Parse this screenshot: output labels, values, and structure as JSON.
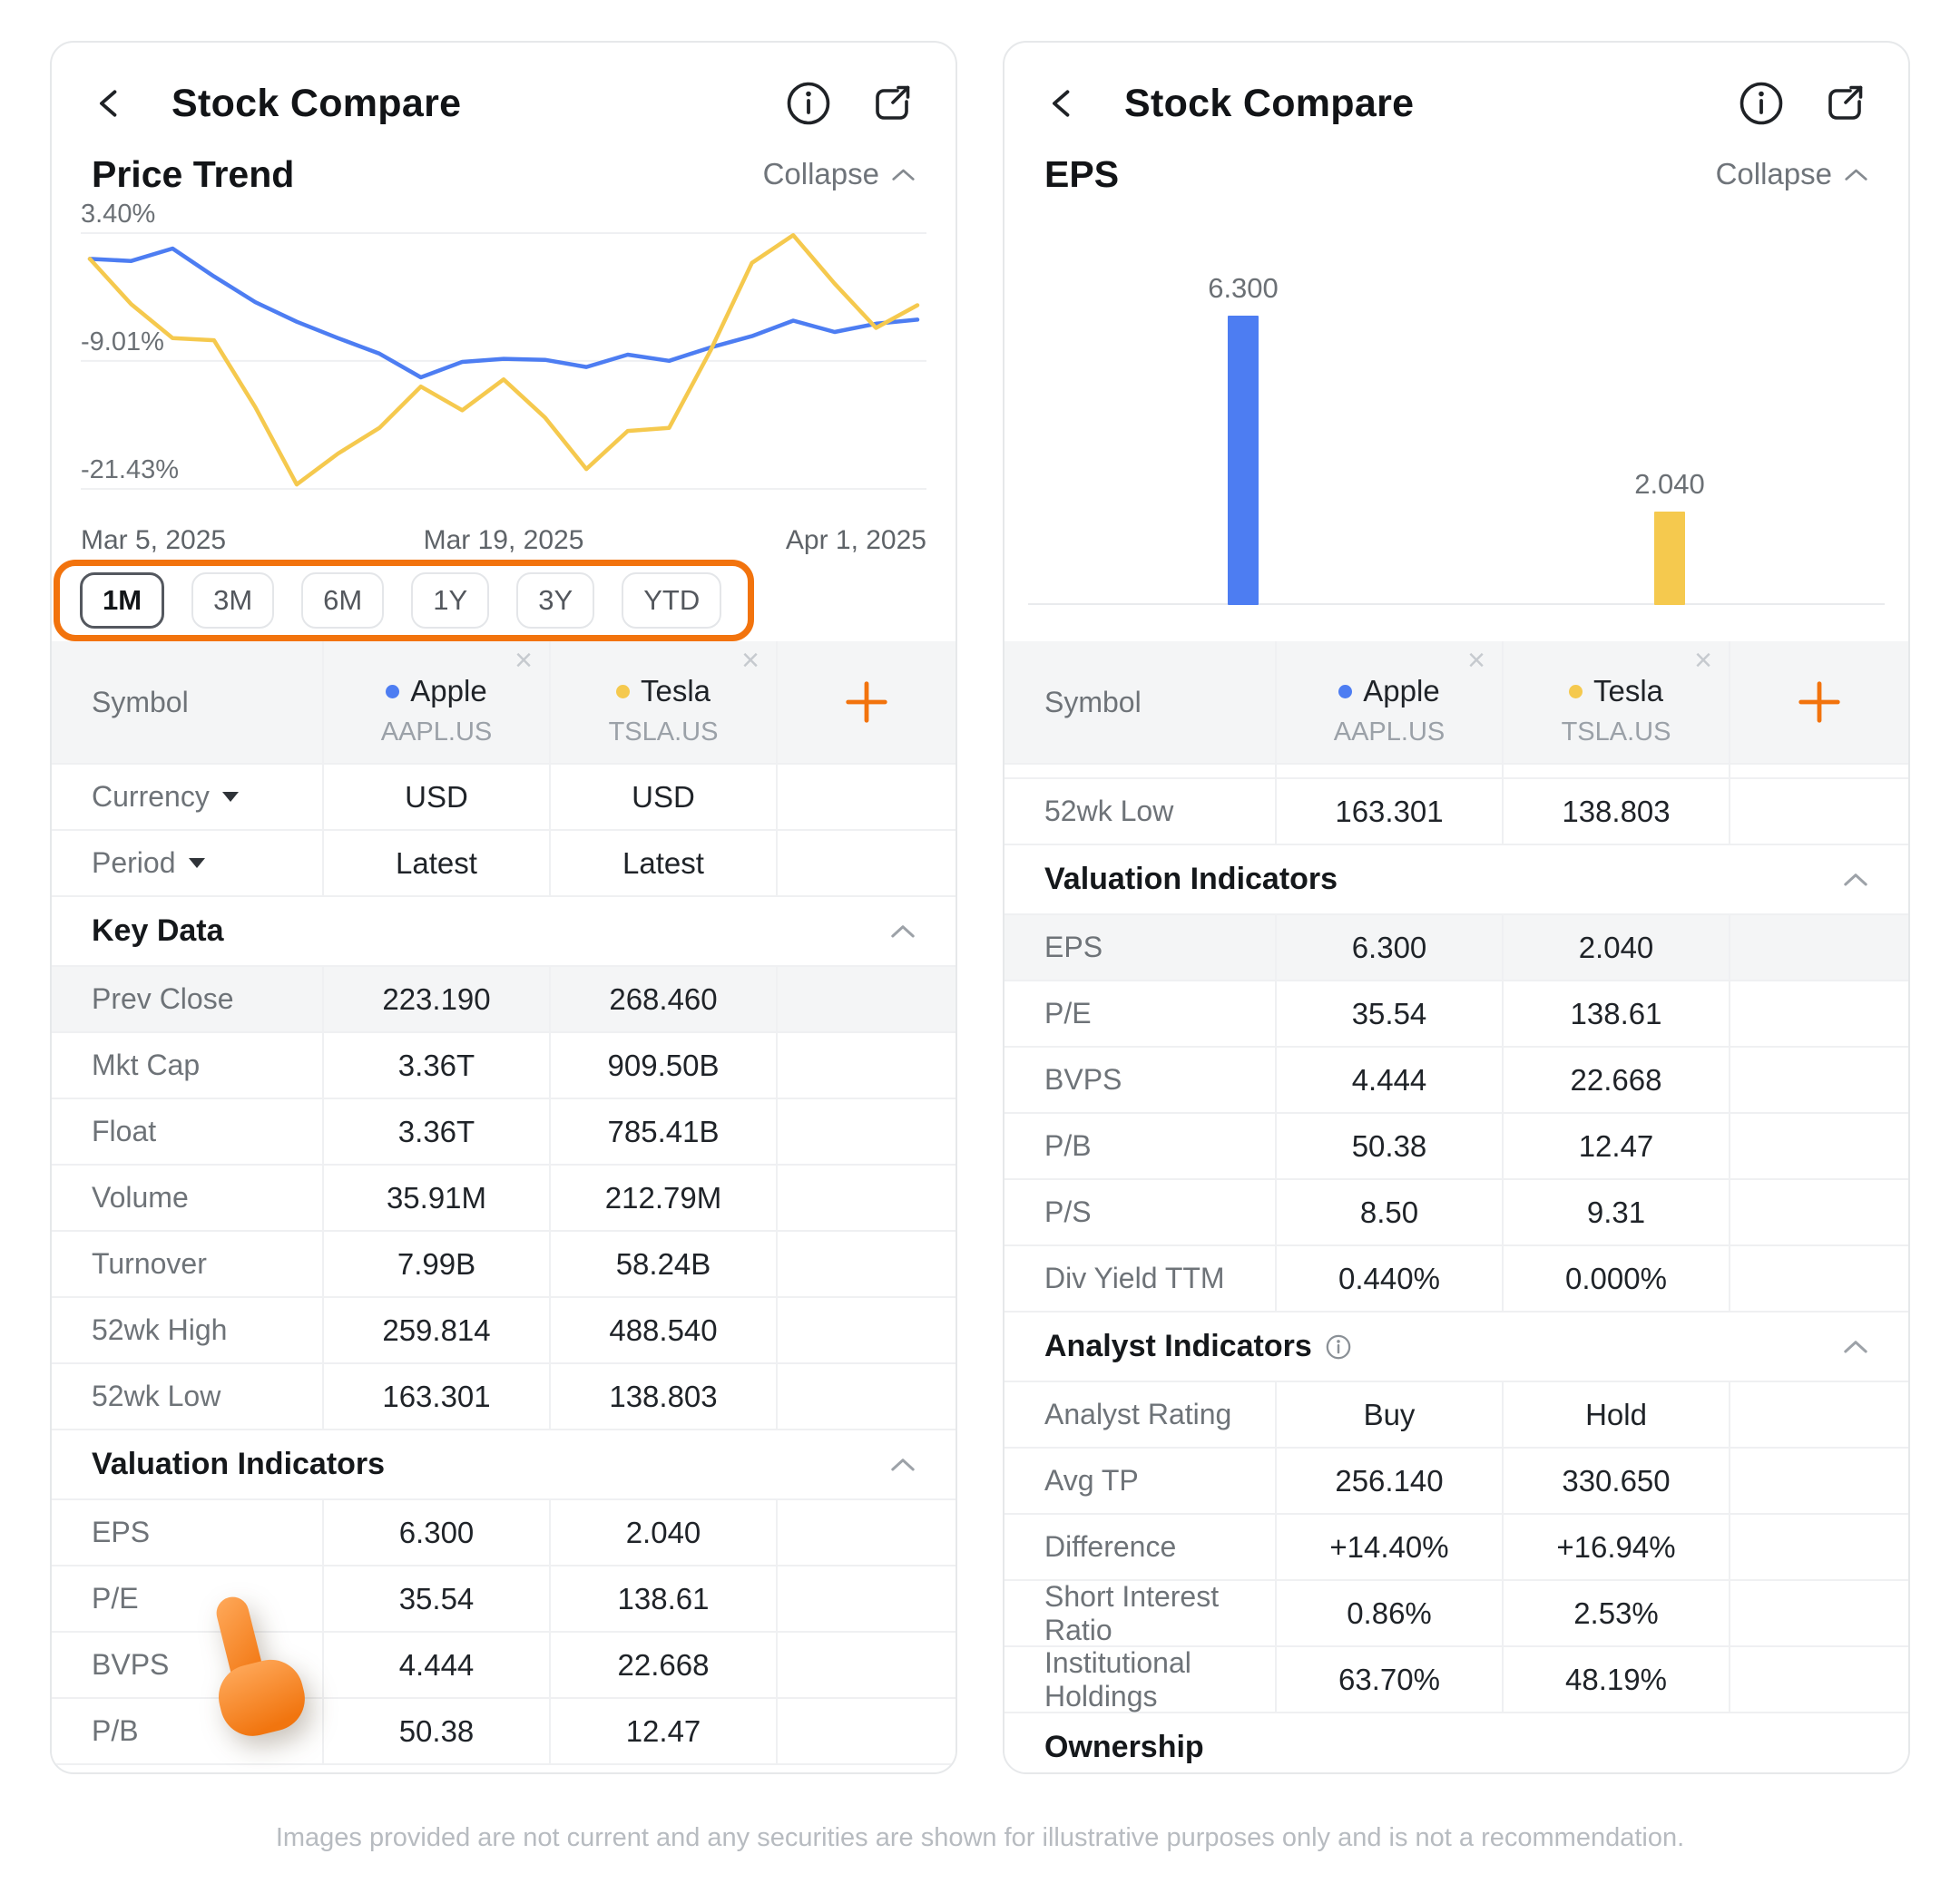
{
  "disclaimer": "Images provided are not current and any securities are shown for illustrative purposes only and is not a recommendation.",
  "colors": {
    "apple_blue": "#4D7DF2",
    "tesla_yellow": "#F5C94E",
    "accent_orange": "#F2730D",
    "highlight_row": "#F4F5F6"
  },
  "left_panel": {
    "header": {
      "title": "Stock Compare"
    },
    "section": {
      "title": "Price Trend",
      "collapse_label": "Collapse"
    },
    "chart_data": {
      "type": "line",
      "title": "Price Trend (1M, % change)",
      "x_tick_labels": [
        "Mar 5, 2025",
        "Mar 19, 2025",
        "Apr 1, 2025"
      ],
      "y_tick_labels": [
        "3.40%",
        "-9.01%",
        "-21.43%"
      ],
      "y_gridline_values": [
        3.4,
        -9.01,
        -21.43
      ],
      "ylim": [
        -24,
        4.8
      ],
      "grid": "horizontal",
      "legend_position": "none",
      "series": [
        {
          "name": "Apple",
          "color": "#4D7DF2",
          "values": [
            0.9,
            0.7,
            1.9,
            -0.8,
            -3.3,
            -5.2,
            -6.8,
            -8.3,
            -10.6,
            -9.1,
            -8.8,
            -8.9,
            -9.6,
            -8.4,
            -9.0,
            -7.7,
            -6.6,
            -5.1,
            -6.2,
            -5.4,
            -5.0
          ]
        },
        {
          "name": "Tesla",
          "color": "#F5C94E",
          "values": [
            0.9,
            -3.5,
            -6.8,
            -7.0,
            -13.5,
            -21.0,
            -18.0,
            -15.5,
            -11.5,
            -13.8,
            -10.8,
            -14.5,
            -19.5,
            -15.8,
            -15.5,
            -8.0,
            0.5,
            3.2,
            -1.5,
            -5.8,
            -3.6
          ]
        }
      ]
    },
    "period_buttons": {
      "options": [
        "1M",
        "3M",
        "6M",
        "1Y",
        "3Y",
        "YTD"
      ],
      "selected": "1M"
    },
    "table": {
      "columns": [
        {
          "type": "label",
          "header": "Symbol"
        },
        {
          "type": "stock",
          "name": "Apple",
          "ticker": "AAPL.US",
          "dot_color": "#4D7DF2"
        },
        {
          "type": "stock",
          "name": "Tesla",
          "ticker": "TSLA.US",
          "dot_color": "#F5C94E"
        },
        {
          "type": "add"
        }
      ],
      "rows": [
        {
          "type": "data",
          "label": "Currency",
          "dropdown": true,
          "apple": "USD",
          "tesla": "USD"
        },
        {
          "type": "data",
          "label": "Period",
          "dropdown": true,
          "apple": "Latest",
          "tesla": "Latest"
        },
        {
          "type": "section",
          "label": "Key Data",
          "collapsible": true
        },
        {
          "type": "data",
          "label": "Prev Close",
          "apple": "223.190",
          "tesla": "268.460",
          "highlight": true
        },
        {
          "type": "data",
          "label": "Mkt Cap",
          "apple": "3.36T",
          "tesla": "909.50B"
        },
        {
          "type": "data",
          "label": "Float",
          "apple": "3.36T",
          "tesla": "785.41B"
        },
        {
          "type": "data",
          "label": "Volume",
          "apple": "35.91M",
          "tesla": "212.79M"
        },
        {
          "type": "data",
          "label": "Turnover",
          "apple": "7.99B",
          "tesla": "58.24B"
        },
        {
          "type": "data",
          "label": "52wk High",
          "apple": "259.814",
          "tesla": "488.540"
        },
        {
          "type": "data",
          "label": "52wk Low",
          "apple": "163.301",
          "tesla": "138.803"
        },
        {
          "type": "section",
          "label": "Valuation Indicators",
          "collapsible": true
        },
        {
          "type": "data",
          "label": "EPS",
          "apple": "6.300",
          "tesla": "2.040"
        },
        {
          "type": "data",
          "label": "P/E",
          "apple": "35.54",
          "tesla": "138.61"
        },
        {
          "type": "data",
          "label": "BVPS",
          "apple": "4.444",
          "tesla": "22.668"
        },
        {
          "type": "data",
          "label": "P/B",
          "apple": "50.38",
          "tesla": "12.47"
        }
      ]
    }
  },
  "right_panel": {
    "header": {
      "title": "Stock Compare"
    },
    "section": {
      "title": "EPS",
      "collapse_label": "Collapse"
    },
    "chart_data": {
      "type": "bar",
      "title": "EPS",
      "categories": [
        "Apple",
        "Tesla"
      ],
      "values": [
        6.3,
        2.04
      ],
      "value_labels": [
        "6.300",
        "2.040"
      ],
      "colors": [
        "#4D7DF2",
        "#F5C94E"
      ],
      "ylim": [
        0,
        7
      ],
      "grid": "off",
      "legend_position": "none"
    },
    "table": {
      "columns": [
        {
          "type": "label",
          "header": "Symbol"
        },
        {
          "type": "stock",
          "name": "Apple",
          "ticker": "AAPL.US",
          "dot_color": "#4D7DF2"
        },
        {
          "type": "stock",
          "name": "Tesla",
          "ticker": "TSLA.US",
          "dot_color": "#F5C94E"
        },
        {
          "type": "add"
        }
      ],
      "rows": [
        {
          "type": "partial"
        },
        {
          "type": "data",
          "label": "52wk Low",
          "apple": "163.301",
          "tesla": "138.803"
        },
        {
          "type": "section",
          "label": "Valuation Indicators",
          "collapsible": true
        },
        {
          "type": "data",
          "label": "EPS",
          "apple": "6.300",
          "tesla": "2.040",
          "highlight": true
        },
        {
          "type": "data",
          "label": "P/E",
          "apple": "35.54",
          "tesla": "138.61"
        },
        {
          "type": "data",
          "label": "BVPS",
          "apple": "4.444",
          "tesla": "22.668"
        },
        {
          "type": "data",
          "label": "P/B",
          "apple": "50.38",
          "tesla": "12.47"
        },
        {
          "type": "data",
          "label": "P/S",
          "apple": "8.50",
          "tesla": "9.31"
        },
        {
          "type": "data",
          "label": "Div Yield TTM",
          "apple": "0.440%",
          "tesla": "0.000%"
        },
        {
          "type": "section",
          "label": "Analyst Indicators",
          "collapsible": true,
          "info": true
        },
        {
          "type": "data",
          "label": "Analyst Rating",
          "apple": "Buy",
          "tesla": "Hold"
        },
        {
          "type": "data",
          "label": "Avg TP",
          "apple": "256.140",
          "tesla": "330.650"
        },
        {
          "type": "data",
          "label": "Difference",
          "apple": "+14.40%",
          "tesla": "+16.94%"
        },
        {
          "type": "data",
          "label": "Short Interest Ratio",
          "apple": "0.86%",
          "tesla": "2.53%"
        },
        {
          "type": "data",
          "label": "Institutional Holdings",
          "apple": "63.70%",
          "tesla": "48.19%"
        },
        {
          "type": "section",
          "label": "Ownership",
          "collapsible": false
        }
      ]
    }
  }
}
